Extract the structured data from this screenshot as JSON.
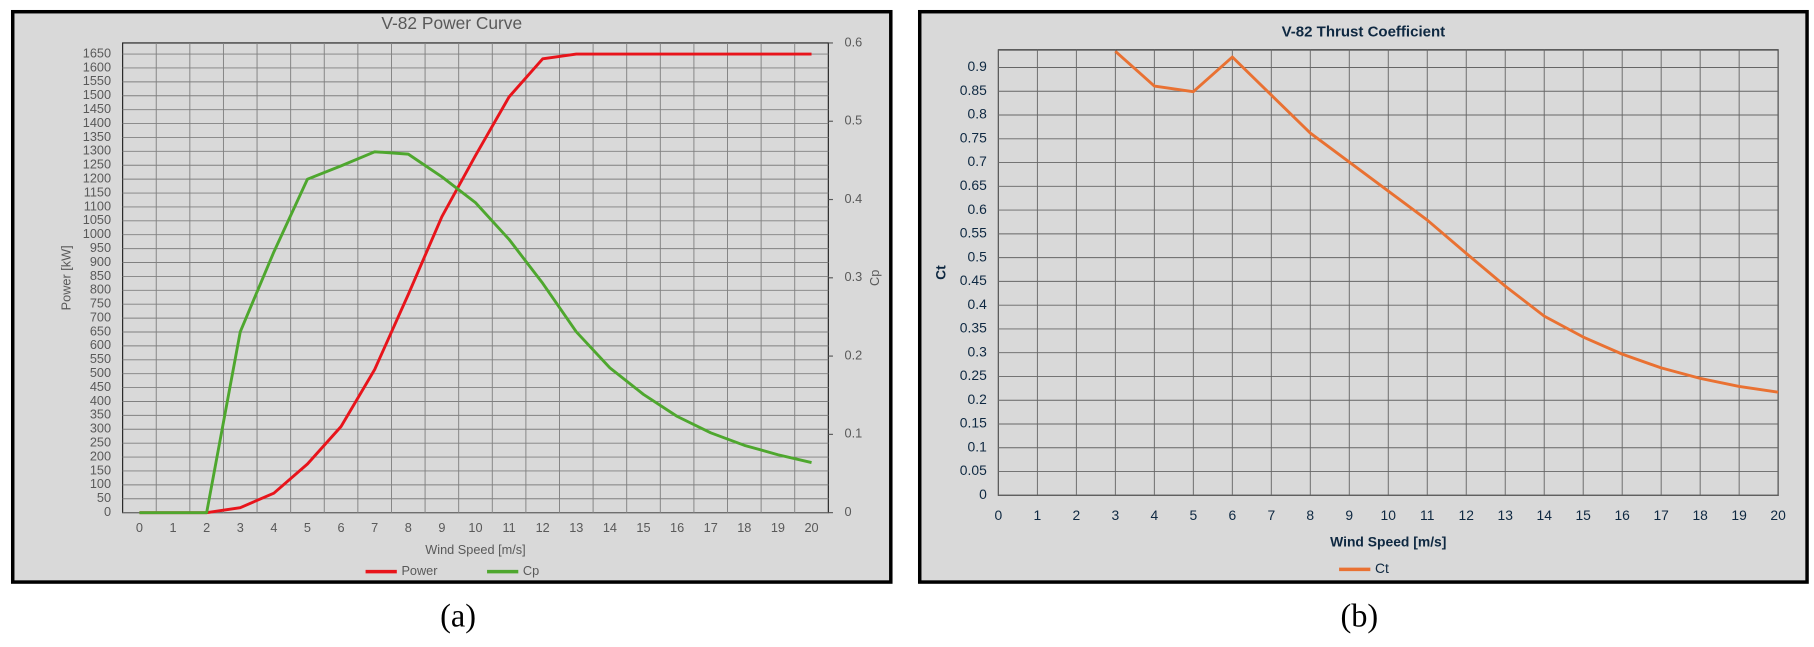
{
  "chart_data": [
    {
      "type": "line",
      "title": "V-82 Power Curve",
      "caption": "(a)",
      "x_label": "Wind Speed [m/s]",
      "y_label": "Power [kW]",
      "y2_label": "Cp",
      "categories": [
        "0",
        "1",
        "2",
        "3",
        "4",
        "5",
        "6",
        "7",
        "8",
        "9",
        "10",
        "11",
        "12",
        "13",
        "14",
        "15",
        "16",
        "17",
        "18",
        "19",
        "20"
      ],
      "series": [
        {
          "name": "Power",
          "color": "#e8141b",
          "values": [
            0,
            0,
            0,
            18,
            70,
            175,
            310,
            515,
            785,
            1065,
            1285,
            1496,
            1633,
            1650,
            1650,
            1650,
            1650,
            1650,
            1650,
            1650,
            1650
          ]
        },
        {
          "name": "Cp",
          "color": "#4ea72e",
          "axis": "y2",
          "values": [
            0,
            0,
            0,
            0.231,
            0.333,
            0.426,
            0.443,
            0.461,
            0.458,
            0.429,
            0.396,
            0.349,
            0.293,
            0.231,
            0.185,
            0.151,
            0.123,
            0.102,
            0.086,
            0.074,
            0.064
          ]
        }
      ],
      "ylim": [
        0,
        1690
      ],
      "yticks": [
        0,
        50,
        100,
        150,
        200,
        250,
        300,
        350,
        400,
        450,
        500,
        550,
        600,
        650,
        700,
        750,
        800,
        850,
        900,
        950,
        1000,
        1050,
        1100,
        1150,
        1200,
        1250,
        1300,
        1350,
        1400,
        1450,
        1500,
        1550,
        1600,
        1650
      ],
      "y2lim": [
        0,
        0.6
      ],
      "y2ticks": [
        0,
        0.1,
        0.2,
        0.3,
        0.4,
        0.5,
        0.6
      ],
      "grid": true,
      "legend": "bottom"
    },
    {
      "type": "line",
      "title": "V-82 Thrust Coefficient",
      "caption": "(b)",
      "x_label": "Wind Speed [m/s]",
      "y_label": "Ct",
      "x": [
        0,
        1,
        2,
        3,
        4,
        5,
        6,
        7,
        8,
        9,
        10,
        11,
        12,
        13,
        14,
        15,
        16,
        17,
        18,
        19,
        20
      ],
      "xlim": [
        0,
        20
      ],
      "xticks": [
        0,
        1,
        2,
        3,
        4,
        5,
        6,
        7,
        8,
        9,
        10,
        11,
        12,
        13,
        14,
        15,
        16,
        17,
        18,
        19,
        20
      ],
      "series": [
        {
          "name": "Ct",
          "color": "#e97132",
          "values": [
            null,
            null,
            null,
            0.934,
            0.861,
            0.849,
            0.922,
            0.842,
            0.762,
            0.701,
            0.64,
            0.579,
            0.509,
            0.44,
            0.377,
            0.333,
            0.297,
            0.268,
            0.246,
            0.229,
            0.217
          ]
        }
      ],
      "ylim": [
        0,
        0.937
      ],
      "yticks": [
        0,
        0.05,
        0.1,
        0.15,
        0.2,
        0.25,
        0.3,
        0.35,
        0.4,
        0.45,
        0.5,
        0.55,
        0.6,
        0.65,
        0.7,
        0.75,
        0.8,
        0.85,
        0.9
      ],
      "grid": true,
      "legend": "bottom"
    }
  ]
}
